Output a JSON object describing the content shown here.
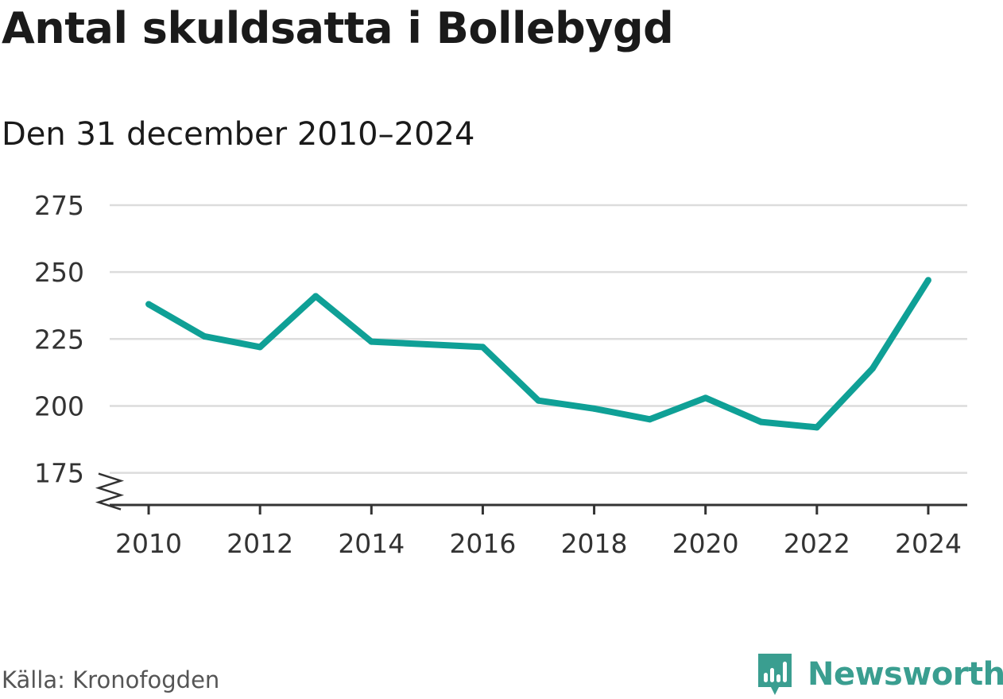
{
  "title": "Antal skuldsatta i Bollebygd",
  "subtitle": "Den 31 december 2010–2024",
  "source": "Källa: Kronofogden",
  "brand": {
    "name": "Newsworthy",
    "icon": "newsworthy-logo-icon",
    "color": "#3a9e90"
  },
  "colors": {
    "line": "#0fa096",
    "grid": "#dcdcdc",
    "axis": "#333333"
  },
  "chart_data": {
    "type": "line",
    "title": "Antal skuldsatta i Bollebygd",
    "subtitle": "Den 31 december 2010–2024",
    "xlabel": "",
    "ylabel": "",
    "x": [
      2010,
      2011,
      2012,
      2013,
      2014,
      2015,
      2016,
      2017,
      2018,
      2019,
      2020,
      2021,
      2022,
      2023,
      2024
    ],
    "values": [
      238,
      226,
      222,
      241,
      224,
      223,
      222,
      202,
      199,
      195,
      203,
      194,
      192,
      214,
      247
    ],
    "xlim": [
      2009.3,
      2024.7
    ],
    "ylim": [
      163,
      275
    ],
    "yticks": [
      175,
      200,
      225,
      250,
      275
    ],
    "xticks": [
      2010,
      2012,
      2014,
      2016,
      2018,
      2020,
      2022,
      2024
    ],
    "grid": true,
    "axis_break": true,
    "legend": "none"
  }
}
